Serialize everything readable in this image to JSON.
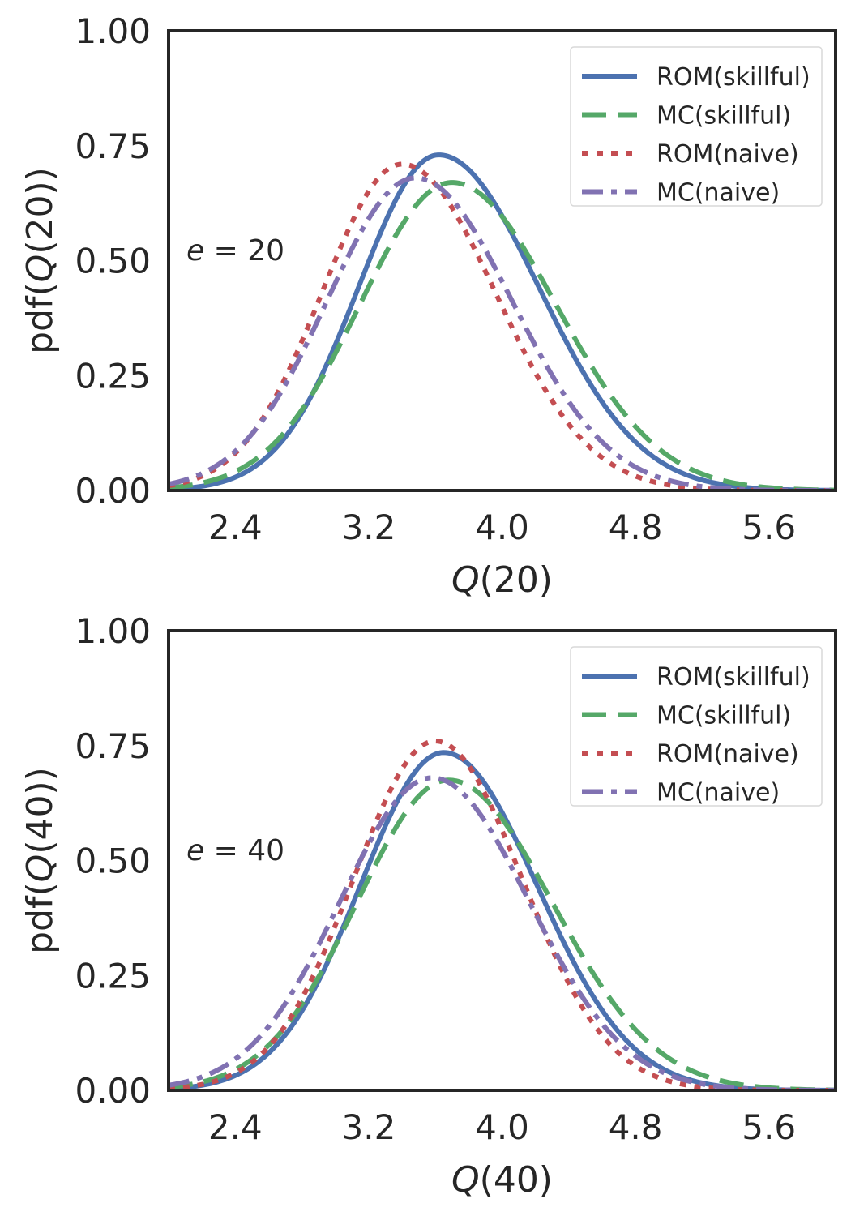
{
  "colors": {
    "rom_skillful": "#4c72b0",
    "mc_skillful": "#55a868",
    "rom_naive": "#c44e52",
    "mc_naive": "#8172b2",
    "frame": "#262626"
  },
  "chart_data": [
    {
      "type": "line",
      "xlabel_italic": "Q",
      "xlabel_rest": "(20)",
      "ylabel_pre": "pdf(",
      "ylabel_italic": "Q",
      "ylabel_post": "(20))",
      "annotation_italic": "e",
      "annotation_rest": " = 20",
      "xlim": [
        2.0,
        6.0
      ],
      "ylim": [
        0.0,
        1.0
      ],
      "xticks": [
        2.4,
        3.2,
        4.0,
        4.8,
        5.6
      ],
      "xtick_labels": [
        "2.4",
        "3.2",
        "4.0",
        "4.8",
        "5.6"
      ],
      "yticks": [
        0.0,
        0.25,
        0.5,
        0.75,
        1.0
      ],
      "ytick_labels": [
        "0.00",
        "0.25",
        "0.50",
        "0.75",
        "1.00"
      ],
      "grid": false,
      "legend_position": "top-right",
      "series": [
        {
          "name": "ROM(skillful)",
          "style": "solid",
          "color_key": "rom_skillful",
          "peak_x": 3.62,
          "peak_y": 0.73,
          "sigma_left": 0.48,
          "sigma_right": 0.6
        },
        {
          "name": "MC(skillful)",
          "style": "dashed",
          "color_key": "mc_skillful",
          "peak_x": 3.7,
          "peak_y": 0.67,
          "sigma_left": 0.55,
          "sigma_right": 0.62
        },
        {
          "name": "ROM(naive)",
          "style": "dotted",
          "color_key": "rom_naive",
          "peak_x": 3.4,
          "peak_y": 0.71,
          "sigma_left": 0.48,
          "sigma_right": 0.56
        },
        {
          "name": "MC(naive)",
          "style": "dashdot",
          "color_key": "mc_naive",
          "peak_x": 3.48,
          "peak_y": 0.68,
          "sigma_left": 0.53,
          "sigma_right": 0.58
        }
      ]
    },
    {
      "type": "line",
      "xlabel_italic": "Q",
      "xlabel_rest": "(40)",
      "ylabel_pre": "pdf(",
      "ylabel_italic": "Q",
      "ylabel_post": "(40))",
      "annotation_italic": "e",
      "annotation_rest": " = 40",
      "xlim": [
        2.0,
        6.0
      ],
      "ylim": [
        0.0,
        1.0
      ],
      "xticks": [
        2.4,
        3.2,
        4.0,
        4.8,
        5.6
      ],
      "xtick_labels": [
        "2.4",
        "3.2",
        "4.0",
        "4.8",
        "5.6"
      ],
      "yticks": [
        0.0,
        0.25,
        0.5,
        0.75,
        1.0
      ],
      "ytick_labels": [
        "0.00",
        "0.25",
        "0.50",
        "0.75",
        "1.00"
      ],
      "grid": false,
      "legend_position": "top-right",
      "series": [
        {
          "name": "ROM(skillful)",
          "style": "solid",
          "color_key": "rom_skillful",
          "peak_x": 3.65,
          "peak_y": 0.735,
          "sigma_left": 0.5,
          "sigma_right": 0.56
        },
        {
          "name": "MC(skillful)",
          "style": "dashed",
          "color_key": "mc_skillful",
          "peak_x": 3.68,
          "peak_y": 0.675,
          "sigma_left": 0.55,
          "sigma_right": 0.62
        },
        {
          "name": "ROM(naive)",
          "style": "dotted",
          "color_key": "rom_naive",
          "peak_x": 3.6,
          "peak_y": 0.76,
          "sigma_left": 0.49,
          "sigma_right": 0.52
        },
        {
          "name": "MC(naive)",
          "style": "dashdot",
          "color_key": "mc_naive",
          "peak_x": 3.58,
          "peak_y": 0.68,
          "sigma_left": 0.55,
          "sigma_right": 0.58
        }
      ]
    }
  ]
}
